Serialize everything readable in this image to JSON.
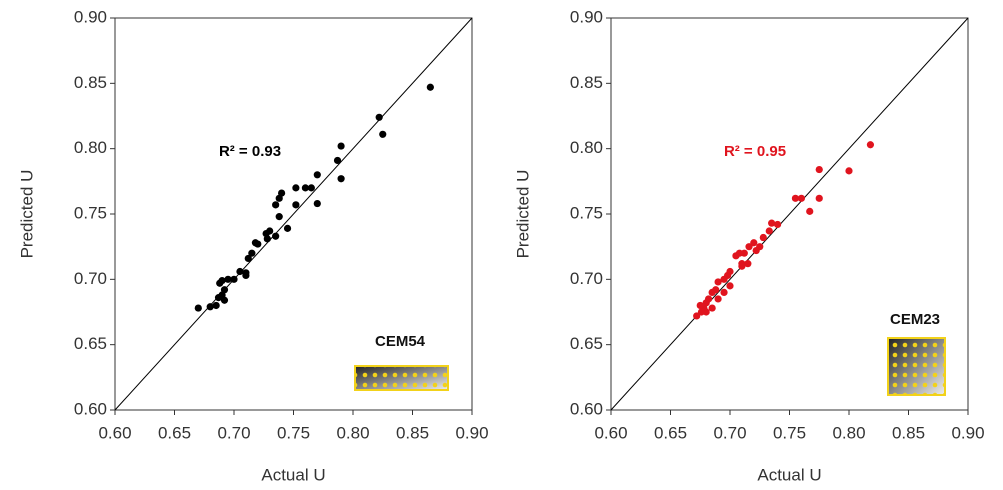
{
  "chart_data": [
    {
      "type": "scatter",
      "xlabel": "Actual U",
      "ylabel": "Predicted U",
      "color": "#000000",
      "annotations": [
        "R² = 0.93",
        "CEM54"
      ],
      "x": [
        0.865,
        0.822,
        0.825,
        0.79,
        0.787,
        0.79,
        0.77,
        0.765,
        0.76,
        0.752,
        0.77,
        0.752,
        0.74,
        0.738,
        0.735,
        0.738,
        0.745,
        0.73,
        0.727,
        0.728,
        0.735,
        0.718,
        0.72,
        0.715,
        0.712,
        0.71,
        0.705,
        0.71,
        0.695,
        0.69,
        0.688,
        0.692,
        0.69,
        0.687,
        0.685,
        0.68,
        0.67,
        0.692,
        0.7
      ],
      "values": [
        0.847,
        0.824,
        0.811,
        0.802,
        0.791,
        0.777,
        0.78,
        0.77,
        0.77,
        0.77,
        0.758,
        0.757,
        0.766,
        0.762,
        0.757,
        0.748,
        0.739,
        0.737,
        0.735,
        0.731,
        0.733,
        0.728,
        0.727,
        0.72,
        0.716,
        0.705,
        0.706,
        0.703,
        0.7,
        0.699,
        0.697,
        0.692,
        0.688,
        0.686,
        0.68,
        0.679,
        0.678,
        0.684,
        0.7
      ],
      "xlim": [
        0.6,
        0.9
      ],
      "ylim": [
        0.6,
        0.9
      ],
      "xticks": [
        {
          "value": 0.6,
          "label": "0.60"
        },
        {
          "value": 0.65,
          "label": "0.65"
        },
        {
          "value": 0.7,
          "label": "0.70"
        },
        {
          "value": 0.75,
          "label": "0.75"
        },
        {
          "value": 0.8,
          "label": "0.80"
        },
        {
          "value": 0.85,
          "label": "0.85"
        },
        {
          "value": 0.9,
          "label": "0.90"
        }
      ],
      "yticks": [
        {
          "value": 0.6,
          "label": "0.60"
        },
        {
          "value": 0.65,
          "label": "0.65"
        },
        {
          "value": 0.7,
          "label": "0.70"
        },
        {
          "value": 0.75,
          "label": "0.75"
        },
        {
          "value": 0.8,
          "label": "0.80"
        },
        {
          "value": 0.85,
          "label": "0.85"
        },
        {
          "value": 0.9,
          "label": "0.90"
        }
      ]
    },
    {
      "type": "scatter",
      "xlabel": "Actual U",
      "ylabel": "Predicted U",
      "color": "#e0141e",
      "annotations": [
        "R² = 0.95",
        "CEM23"
      ],
      "x": [
        0.818,
        0.8,
        0.775,
        0.775,
        0.767,
        0.76,
        0.755,
        0.74,
        0.735,
        0.733,
        0.728,
        0.72,
        0.722,
        0.716,
        0.712,
        0.715,
        0.71,
        0.705,
        0.708,
        0.7,
        0.698,
        0.695,
        0.69,
        0.688,
        0.695,
        0.685,
        0.682,
        0.68,
        0.678,
        0.676,
        0.672,
        0.675,
        0.69,
        0.7,
        0.71,
        0.725,
        0.685,
        0.68
      ],
      "values": [
        0.803,
        0.783,
        0.784,
        0.762,
        0.752,
        0.762,
        0.762,
        0.742,
        0.743,
        0.737,
        0.732,
        0.728,
        0.722,
        0.725,
        0.72,
        0.712,
        0.71,
        0.718,
        0.72,
        0.706,
        0.703,
        0.7,
        0.698,
        0.692,
        0.69,
        0.69,
        0.685,
        0.682,
        0.678,
        0.675,
        0.672,
        0.68,
        0.685,
        0.695,
        0.712,
        0.725,
        0.678,
        0.675
      ],
      "xlim": [
        0.6,
        0.9
      ],
      "ylim": [
        0.6,
        0.9
      ],
      "xticks": [
        {
          "value": 0.6,
          "label": "0.60"
        },
        {
          "value": 0.65,
          "label": "0.65"
        },
        {
          "value": 0.7,
          "label": "0.70"
        },
        {
          "value": 0.75,
          "label": "0.75"
        },
        {
          "value": 0.8,
          "label": "0.80"
        },
        {
          "value": 0.85,
          "label": "0.85"
        },
        {
          "value": 0.9,
          "label": "0.90"
        }
      ],
      "yticks": [
        {
          "value": 0.6,
          "label": "0.60"
        },
        {
          "value": 0.65,
          "label": "0.65"
        },
        {
          "value": 0.7,
          "label": "0.70"
        },
        {
          "value": 0.75,
          "label": "0.75"
        },
        {
          "value": 0.8,
          "label": "0.80"
        },
        {
          "value": 0.85,
          "label": "0.85"
        },
        {
          "value": 0.9,
          "label": "0.90"
        }
      ]
    }
  ]
}
